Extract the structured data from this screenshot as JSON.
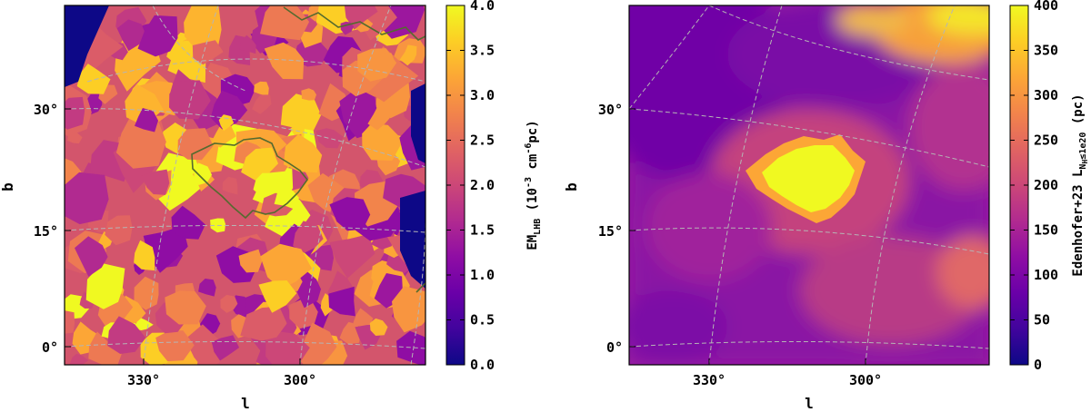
{
  "chart_data": [
    {
      "type": "heatmap",
      "title": "",
      "xlabel": "l",
      "ylabel": "b",
      "x_ticks": [
        "330°",
        "300°"
      ],
      "y_ticks": [
        "30°",
        "15°",
        "0°"
      ],
      "colormap": "plasma",
      "colorbar": {
        "label_main": "EM",
        "label_sub": "LHB",
        "label_unit_pre": "(10",
        "label_unit_exp1": "-3",
        "label_unit_mid": " cm",
        "label_unit_exp2": "-6",
        "label_unit_post": "pc)",
        "range": [
          0.0,
          4.0
        ],
        "ticks": [
          "0.0",
          "0.5",
          "1.0",
          "1.5",
          "2.0",
          "2.5",
          "3.0",
          "3.5",
          "4.0"
        ]
      },
      "annotations": "patchy emission-measure map with a contoured bright region near l≈315°, b≈20°"
    },
    {
      "type": "heatmap",
      "title": "",
      "xlabel": "l",
      "ylabel": "b",
      "x_ticks": [
        "330°",
        "300°"
      ],
      "y_ticks": [
        "30°",
        "15°",
        "0°"
      ],
      "colormap": "plasma",
      "colorbar": {
        "label_main": "Edenhofer+23 L",
        "label_sub": "N",
        "label_subsub": "H",
        "label_cond": "≤1e20",
        "label_unit": " (pc)",
        "range": [
          0,
          400
        ],
        "ticks": [
          "0",
          "50",
          "100",
          "150",
          "200",
          "250",
          "300",
          "350",
          "400"
        ]
      },
      "annotations": "smooth column-length map with a bright blob near l≈315°, b≈20°"
    }
  ]
}
